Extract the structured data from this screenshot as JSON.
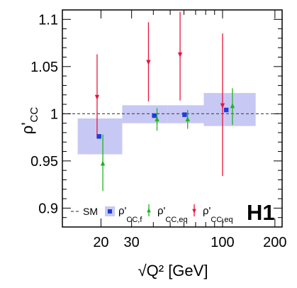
{
  "chart_data": {
    "type": "scatter",
    "experiment_label": "H1",
    "ylabel": {
      "main": "ρ'",
      "sub": "CC"
    },
    "xlabel": {
      "main": "√Q² [GeV]"
    },
    "x_scale": "log",
    "xlim": [
      12,
      220
    ],
    "ylim": [
      0.88,
      1.11
    ],
    "x_ticks": [
      20,
      30,
      100,
      200
    ],
    "y_ticks": [
      0.9,
      0.95,
      1,
      1.05,
      1.1
    ],
    "y_tick_labels": [
      "0.9",
      "0.95",
      "1",
      "1.05",
      "1.1"
    ],
    "reference_line": {
      "name": "SM",
      "y": 1.0,
      "style": "dashed"
    },
    "series": [
      {
        "name": "ρ'CC,f",
        "label_main": "ρ'",
        "label_sub": "CC,f",
        "marker": "square",
        "color": "#1e3cdc",
        "band_color": "#c8c8f5",
        "points": [
          {
            "x": 19.5,
            "y": 0.976,
            "band": [
              14.7,
              26.5,
              0.957,
              0.995
            ]
          },
          {
            "x": 40.5,
            "y": 0.998,
            "band": [
              26.5,
              48.5,
              0.99,
              1.009
            ]
          },
          {
            "x": 60.5,
            "y": 0.999,
            "band": [
              48.5,
              78.0,
              0.99,
              1.009
            ]
          },
          {
            "x": 105,
            "y": 1.004,
            "band": [
              78.0,
              155,
              0.987,
              1.022
            ]
          }
        ]
      },
      {
        "name": "ρ'CC,eq",
        "label_main": "ρ'",
        "label_sub": "CC,eq",
        "marker": "triangle-up",
        "color": "#1fb31f",
        "points": [
          {
            "x": 20.5,
            "y": 0.947,
            "err": [
              0.918,
              0.978
            ]
          },
          {
            "x": 42,
            "y": 0.994,
            "err": [
              0.982,
              1.006
            ]
          },
          {
            "x": 63,
            "y": 0.994,
            "err": [
              0.984,
              1.004
            ]
          },
          {
            "x": 114,
            "y": 1.008,
            "err": [
              0.988,
              1.027
            ]
          }
        ]
      },
      {
        "name": "ρ'CC,eq (down)",
        "label_main": "ρ'",
        "label_sub": "CC,eq",
        "marker": "triangle-down",
        "color": "#e8143c",
        "points": [
          {
            "x": 19.0,
            "y": 1.018,
            "err": [
              0.974,
              1.063
            ]
          },
          {
            "x": 37.5,
            "y": 1.055,
            "err": [
              1.013,
              1.097
            ]
          },
          {
            "x": 57,
            "y": 1.063,
            "err": [
              1.014,
              1.108
            ]
          },
          {
            "x": 100,
            "y": 1.009,
            "err": [
              0.934,
              1.085
            ]
          }
        ]
      }
    ]
  }
}
